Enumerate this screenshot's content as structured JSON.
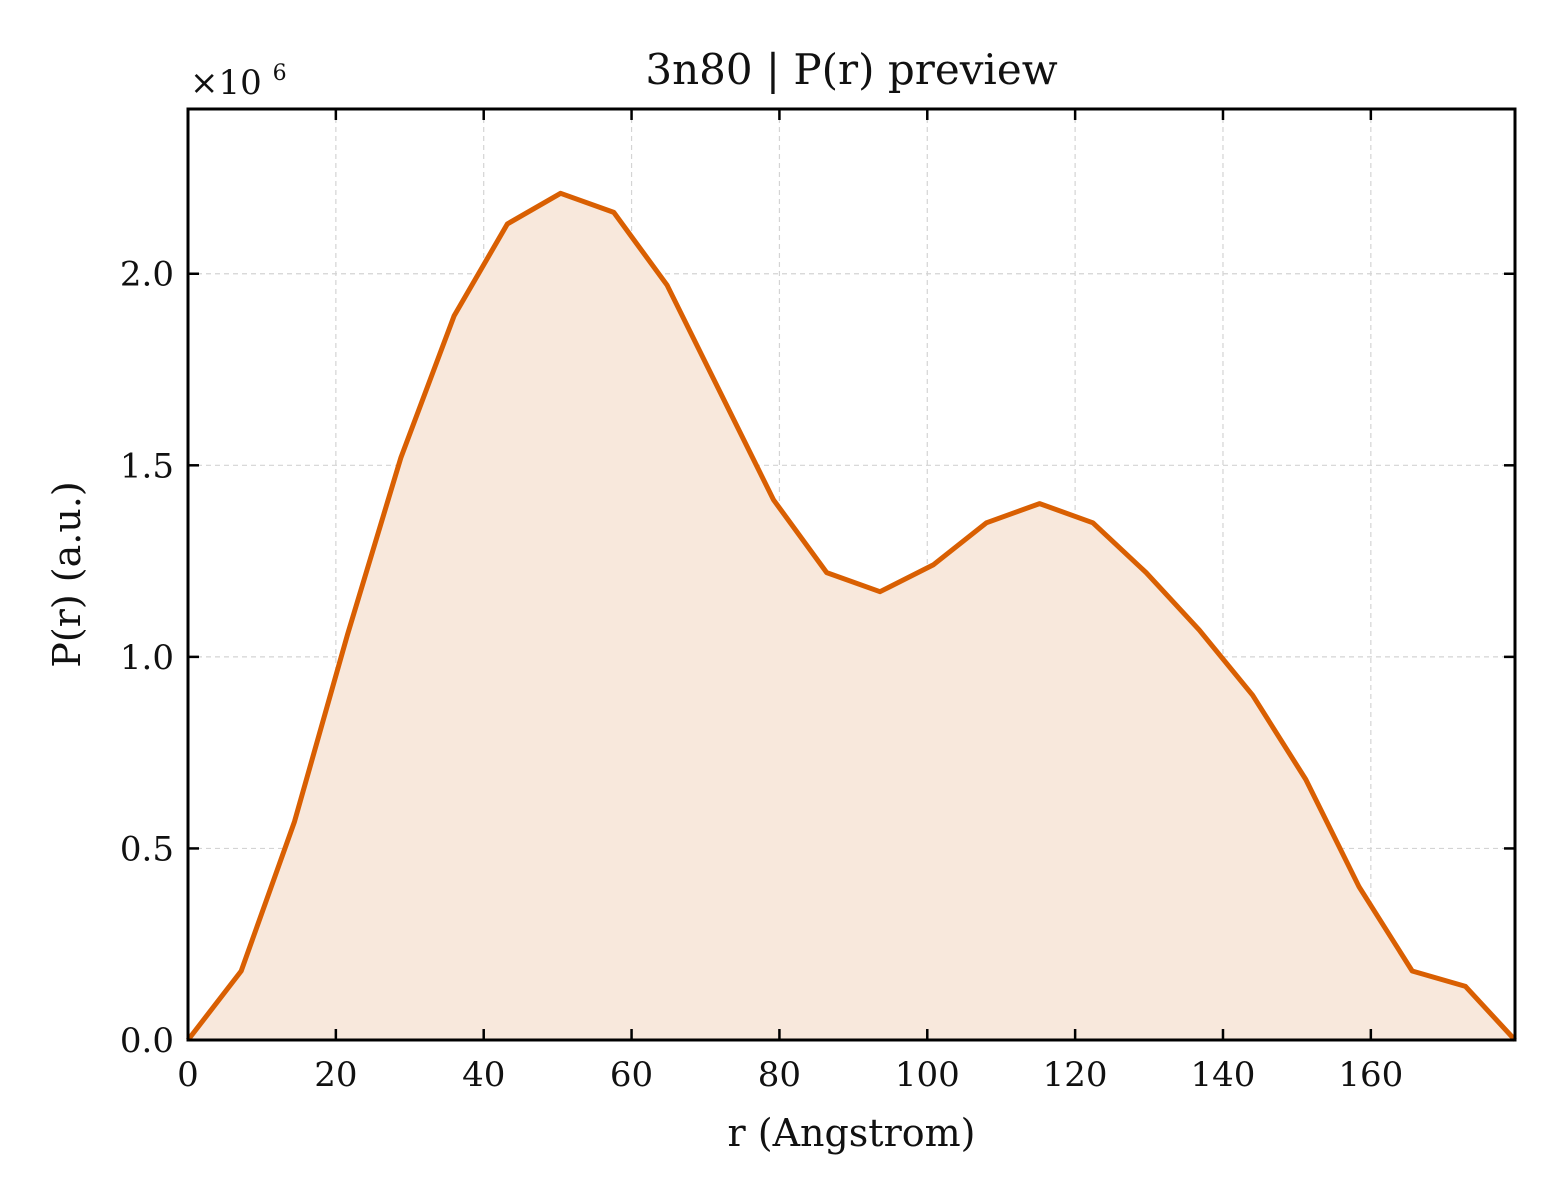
{
  "chart_data": {
    "type": "area",
    "title": "3n80 | P(r) preview",
    "xlabel": "r (Angstrom)",
    "ylabel": "P(r) (a.u.)",
    "y_offset_label": {
      "prefix": "×10",
      "exponent": "6"
    },
    "xlim": [
      0,
      179.5
    ],
    "ylim": [
      0,
      2.43
    ],
    "y_scale_multiplier": 1000000,
    "x_ticks": [
      0,
      20,
      40,
      60,
      80,
      100,
      120,
      140,
      160
    ],
    "x_tick_labels": [
      "0",
      "20",
      "40",
      "60",
      "80",
      "100",
      "120",
      "140",
      "160"
    ],
    "y_ticks": [
      0,
      0.5,
      1.0,
      1.5,
      2.0
    ],
    "y_tick_labels": [
      "0.0",
      "0.5",
      "1.0",
      "1.5",
      "2.0"
    ],
    "grid": true,
    "legend": "none",
    "series": [
      {
        "color": "#d95f02",
        "fill_color": "#f8e8dc",
        "x": [
          0,
          7.2,
          14.4,
          21.6,
          28.8,
          36.0,
          43.2,
          50.4,
          57.6,
          64.8,
          72.0,
          79.2,
          86.4,
          93.6,
          100.8,
          108.0,
          115.2,
          122.4,
          129.6,
          136.8,
          144.0,
          151.2,
          158.4,
          165.6,
          172.8,
          179.5
        ],
        "y": [
          0.0,
          0.18,
          0.57,
          1.06,
          1.52,
          1.89,
          2.13,
          2.21,
          2.16,
          1.97,
          1.69,
          1.41,
          1.22,
          1.17,
          1.24,
          1.35,
          1.4,
          1.35,
          1.22,
          1.07,
          0.9,
          0.68,
          0.4,
          0.18,
          0.14,
          0.0
        ]
      }
    ]
  }
}
